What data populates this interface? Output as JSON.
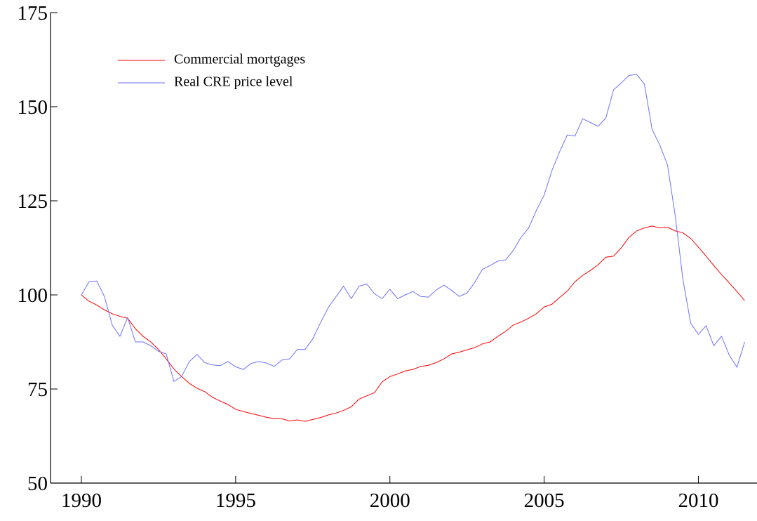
{
  "chart_data": {
    "type": "line",
    "x": [
      1990,
      1990.25,
      1990.5,
      1990.75,
      1991,
      1991.25,
      1991.5,
      1991.75,
      1992,
      1992.25,
      1992.5,
      1992.75,
      1993,
      1993.25,
      1993.5,
      1993.75,
      1994,
      1994.25,
      1994.5,
      1994.75,
      1995,
      1995.25,
      1995.5,
      1995.75,
      1996,
      1996.25,
      1996.5,
      1996.75,
      1997,
      1997.25,
      1997.5,
      1997.75,
      1998,
      1998.25,
      1998.5,
      1998.75,
      1999,
      1999.25,
      1999.5,
      1999.75,
      2000,
      2000.25,
      2000.5,
      2000.75,
      2001,
      2001.25,
      2001.5,
      2001.75,
      2002,
      2002.25,
      2002.5,
      2002.75,
      2003,
      2003.25,
      2003.5,
      2003.75,
      2004,
      2004.25,
      2004.5,
      2004.75,
      2005,
      2005.25,
      2005.5,
      2005.75,
      2006,
      2006.25,
      2006.5,
      2006.75,
      2007,
      2007.25,
      2007.5,
      2007.75,
      2008,
      2008.25,
      2008.5,
      2008.75,
      2009,
      2009.25,
      2009.5,
      2009.75,
      2010,
      2010.25,
      2010.5,
      2010.75,
      2011,
      2011.25,
      2011.5
    ],
    "series": [
      {
        "name": "Commercial mortgages",
        "color": "#ff0000",
        "values": [
          100,
          98.3,
          97.3,
          96,
          95,
          94.3,
          93.8,
          91,
          89,
          87.5,
          85.5,
          83,
          80.3,
          78.3,
          76.5,
          75.2,
          74.3,
          72.8,
          71.8,
          70.9,
          69.6,
          69,
          68.5,
          68,
          67.5,
          67.1,
          67.1,
          66.5,
          66.8,
          66.4,
          66.9,
          67.4,
          68.1,
          68.6,
          69.3,
          70.3,
          72.3,
          73.2,
          74,
          76.9,
          78.3,
          79,
          79.8,
          80.2,
          81,
          81.3,
          82,
          83,
          84.3,
          84.8,
          85.4,
          86,
          87,
          87.5,
          89,
          90.3,
          92,
          92.8,
          93.8,
          95,
          96.8,
          97.5,
          99.3,
          101,
          103.5,
          105.2,
          106.5,
          108,
          110,
          110.3,
          112.5,
          115.3,
          117,
          117.8,
          118.3,
          117.8,
          118,
          117,
          116.5,
          115,
          112.7,
          110.3,
          107.8,
          105.4,
          103.2,
          100.9,
          98.5
        ]
      },
      {
        "name": "Real CRE price level",
        "color": "#6f6fff",
        "values": [
          100,
          103.5,
          103.7,
          99.5,
          92,
          89,
          94,
          87.5,
          87.5,
          86.5,
          85,
          84.3,
          77,
          78.3,
          82.3,
          84.2,
          82,
          81.4,
          81.2,
          82.3,
          80.9,
          80.2,
          81.8,
          82.3,
          81.9,
          81,
          82.7,
          83,
          85.5,
          85.5,
          88.3,
          92.6,
          96.6,
          99.5,
          102.3,
          99,
          102.3,
          102.9,
          100.3,
          99,
          101.5,
          99,
          100,
          100.9,
          99.6,
          99.4,
          101.3,
          102.6,
          101.2,
          99.6,
          100.5,
          103.3,
          106.8,
          107.8,
          109,
          109.3,
          111.8,
          115.3,
          117.8,
          122.5,
          126.5,
          133,
          138,
          142.5,
          142.2,
          146.8,
          145.8,
          144.8,
          147,
          154.5,
          156.3,
          158.3,
          158.6,
          156,
          144,
          139.8,
          134.5,
          121,
          104,
          92.5,
          89.5,
          91.8,
          86.5,
          89,
          84,
          80.8,
          87.5
        ]
      }
    ],
    "xlim": [
      1989,
      2011.9
    ],
    "xticks": [
      1990,
      1995,
      2000,
      2005,
      2010
    ],
    "ylim": [
      50,
      175
    ],
    "yticks": [
      50,
      75,
      100,
      125,
      150,
      175
    ],
    "legend": "upper left"
  }
}
